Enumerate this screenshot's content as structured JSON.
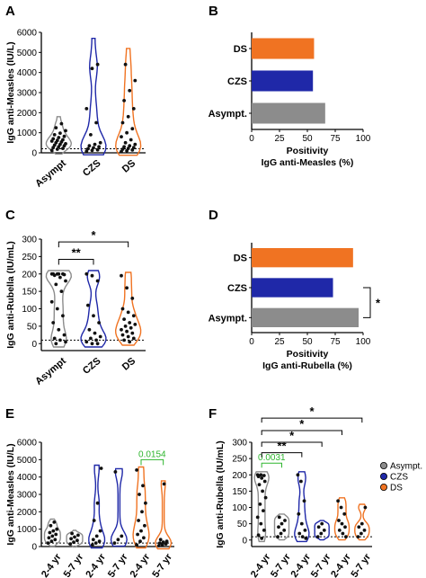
{
  "colors": {
    "asympt": "#8c8c8c",
    "czs": "#1f28a8",
    "ds": "#f07322",
    "green": "#2db52d",
    "axis": "#000000"
  },
  "panels": {
    "A": "A",
    "B": "B",
    "C": "C",
    "D": "D",
    "E": "E",
    "F": "F"
  },
  "chart_data": [
    {
      "id": "A",
      "type": "violin",
      "ylabel": "IgG anti-Measles (IU/L)",
      "ylim": [
        0,
        6000
      ],
      "yticks": [
        "0",
        "1000",
        "2000",
        "3000",
        "4000",
        "5000",
        "6000"
      ],
      "categories": [
        "Asympt",
        "CZS",
        "DS"
      ],
      "threshold": 200,
      "series": [
        {
          "group": "Asympt",
          "max": 1800,
          "points": [
            120,
            180,
            220,
            260,
            300,
            350,
            380,
            420,
            450,
            500,
            540,
            580,
            620,
            650,
            700,
            760,
            820,
            900,
            980,
            1100,
            1250,
            1450
          ]
        },
        {
          "group": "CZS",
          "max": 5700,
          "points": [
            80,
            120,
            150,
            200,
            250,
            300,
            350,
            420,
            500,
            900,
            1500,
            2200,
            4200,
            4400
          ]
        },
        {
          "group": "DS",
          "max": 5200,
          "points": [
            60,
            100,
            140,
            180,
            220,
            260,
            300,
            350,
            420,
            500,
            650,
            800,
            1000,
            1200,
            1500,
            1800,
            2200,
            2600,
            3100,
            3600,
            4400
          ]
        }
      ]
    },
    {
      "id": "B",
      "type": "bar",
      "orientation": "horizontal",
      "categories": [
        "DS",
        "CZS",
        "Asympt."
      ],
      "values": [
        56,
        55,
        66
      ],
      "xlim": [
        0,
        100
      ],
      "xticks": [
        "0",
        "25",
        "50",
        "75",
        "100"
      ],
      "xlabel": [
        "Positivity",
        "IgG anti-Measles (%)"
      ]
    },
    {
      "id": "C",
      "type": "violin",
      "ylabel": "IgG anti-Rubella (IU/mL)",
      "ylim": [
        -20,
        300
      ],
      "yticks": [
        "0",
        "50",
        "100",
        "150",
        "200",
        "250",
        "300"
      ],
      "categories": [
        "Asympt",
        "CZS",
        "DS"
      ],
      "threshold": 10,
      "significance": [
        {
          "from": "Asympt",
          "to": "CZS",
          "label": "**"
        },
        {
          "from": "Asympt",
          "to": "DS",
          "label": "*"
        }
      ],
      "series": [
        {
          "group": "Asympt",
          "points": [
            200,
            200,
            200,
            200,
            200,
            198,
            196,
            190,
            180,
            170,
            150,
            120,
            100,
            80,
            60,
            40,
            25,
            15,
            10,
            5,
            0
          ]
        },
        {
          "group": "CZS",
          "points": [
            200,
            195,
            180,
            110,
            80,
            60,
            40,
            30,
            20,
            15,
            10,
            5,
            0,
            0
          ]
        },
        {
          "group": "DS",
          "points": [
            195,
            160,
            130,
            100,
            90,
            80,
            70,
            60,
            55,
            50,
            45,
            40,
            35,
            30,
            25,
            20,
            15,
            10,
            5
          ]
        }
      ]
    },
    {
      "id": "D",
      "type": "bar",
      "orientation": "horizontal",
      "categories": [
        "DS",
        "CZS",
        "Asympt."
      ],
      "values": [
        91,
        73,
        96
      ],
      "xlim": [
        0,
        100
      ],
      "xticks": [
        "0",
        "25",
        "50",
        "75",
        "100"
      ],
      "xlabel": [
        "Positivity",
        "IgG anti-Rubella (%)"
      ],
      "significance": [
        {
          "from": "CZS",
          "to": "Asympt.",
          "label": "*"
        }
      ]
    },
    {
      "id": "E",
      "type": "violin",
      "ylabel": "IgG anti-Measles (IU/L)",
      "ylim": [
        0,
        6000
      ],
      "yticks": [
        "0",
        "1000",
        "2000",
        "3000",
        "4000",
        "5000",
        "6000"
      ],
      "categories": [
        "2-4 yr",
        "5-7 yr",
        "2-4 yr",
        "5-7 yr",
        "2-4 yr",
        "5-7 yr"
      ],
      "threshold": 200,
      "significance": [
        {
          "from": 4,
          "to": 5,
          "label": "0.0154"
        }
      ],
      "series": [
        {
          "group": "Asympt",
          "age": "2-4 yr",
          "points": [
            200,
            300,
            400,
            500,
            600,
            700,
            800,
            900,
            1000,
            1200,
            1400
          ]
        },
        {
          "group": "Asympt",
          "age": "5-7 yr",
          "points": [
            150,
            250,
            350,
            450,
            550,
            650,
            750
          ]
        },
        {
          "group": "CZS",
          "age": "2-4 yr",
          "points": [
            100,
            200,
            300,
            400,
            600,
            900,
            1500,
            2500,
            4500
          ]
        },
        {
          "group": "CZS",
          "age": "5-7 yr",
          "points": [
            200,
            400,
            600,
            4300
          ]
        },
        {
          "group": "DS",
          "age": "2-4 yr",
          "points": [
            100,
            300,
            500,
            700,
            900,
            1200,
            1500,
            2000,
            2500,
            3000,
            3500,
            4400
          ]
        },
        {
          "group": "DS",
          "age": "5-7 yr",
          "points": [
            50,
            100,
            150,
            200,
            250,
            300,
            400,
            3600
          ]
        }
      ]
    },
    {
      "id": "F",
      "type": "violin",
      "ylabel": "IgG anti-Rubella (IU/mL)",
      "ylim": [
        -20,
        300
      ],
      "yticks": [
        "0",
        "50",
        "100",
        "150",
        "200",
        "250",
        "300"
      ],
      "categories": [
        "2-4 yr",
        "5-7 yr",
        "2-4 yr",
        "5-7 yr",
        "2-4 yr",
        "5-7 yr"
      ],
      "threshold": 10,
      "legend": [
        "Asympt.",
        "CZS",
        "DS"
      ],
      "significance": [
        {
          "from": 0,
          "to": 1,
          "label": "0.0031",
          "color": "green"
        },
        {
          "from": 0,
          "to": 2,
          "label": "**"
        },
        {
          "from": 0,
          "to": 3,
          "label": "*"
        },
        {
          "from": 0,
          "to": 4,
          "label": "*"
        },
        {
          "from": 0,
          "to": 5,
          "label": "*"
        }
      ],
      "series": [
        {
          "group": "Asympt",
          "age": "2-4 yr",
          "points": [
            200,
            200,
            198,
            195,
            190,
            180,
            170,
            150,
            130,
            110,
            90,
            70,
            50,
            30,
            15,
            5
          ]
        },
        {
          "group": "Asympt",
          "age": "5-7 yr",
          "points": [
            10,
            20,
            30,
            40,
            50,
            60,
            70
          ]
        },
        {
          "group": "CZS",
          "age": "2-4 yr",
          "points": [
            200,
            180,
            120,
            80,
            50,
            30,
            20,
            10,
            5
          ]
        },
        {
          "group": "CZS",
          "age": "5-7 yr",
          "points": [
            10,
            20,
            30,
            40,
            50
          ]
        },
        {
          "group": "DS",
          "age": "2-4 yr",
          "points": [
            120,
            100,
            80,
            60,
            50,
            40,
            30,
            20,
            10
          ]
        },
        {
          "group": "DS",
          "age": "5-7 yr",
          "points": [
            10,
            20,
            30,
            40,
            50,
            100
          ]
        }
      ]
    }
  ]
}
